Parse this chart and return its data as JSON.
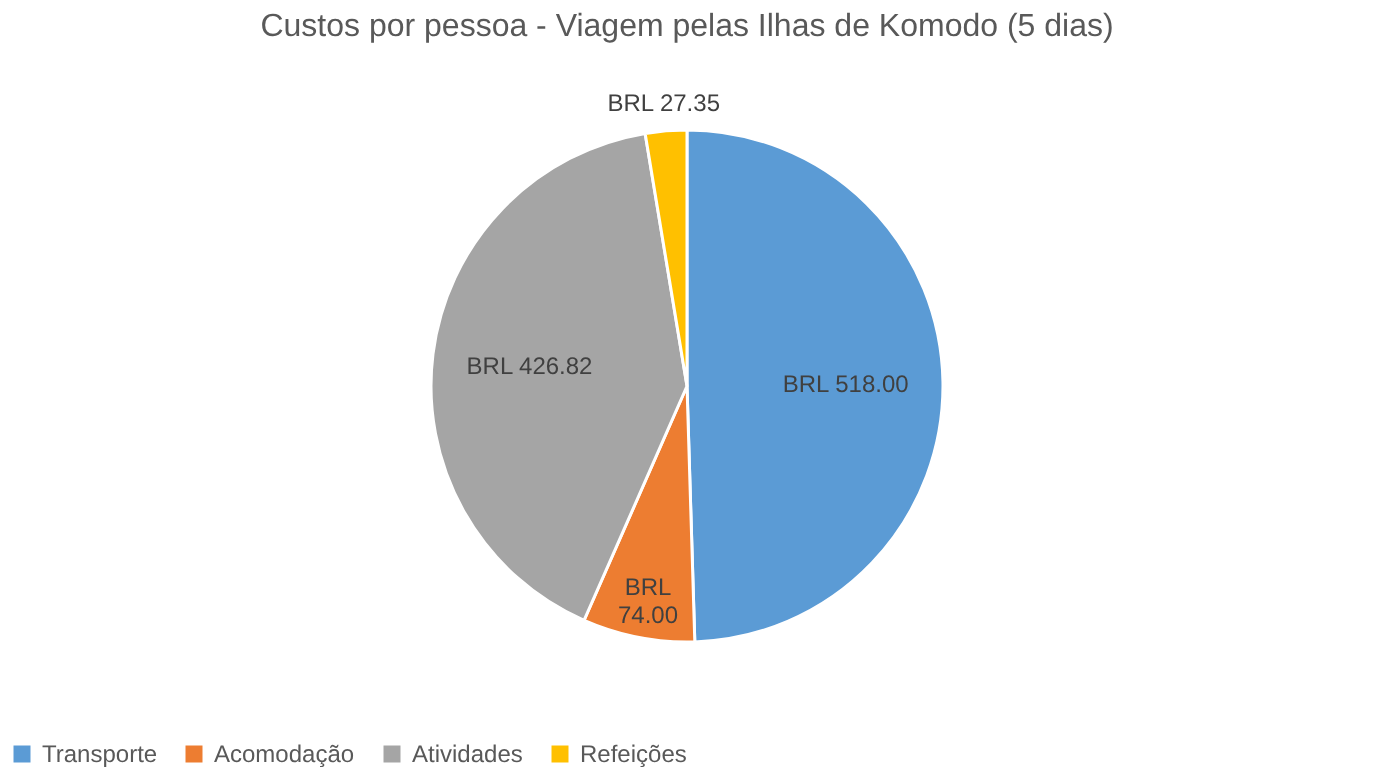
{
  "chart_data": {
    "type": "pie",
    "title": "Custos por pessoa - Viagem pelas Ilhas de Komodo  (5 dias)",
    "categories": [
      "Transporte",
      "Acomodação",
      "Atividades",
      "Refeições"
    ],
    "values": [
      518.0,
      74.0,
      426.82,
      27.35
    ],
    "colors": [
      "#5b9bd5",
      "#ed7d31",
      "#a5a5a5",
      "#ffc000"
    ],
    "value_labels": [
      "BRL 518.00",
      "BRL 74.00",
      "BRL 426.82",
      "BRL 27.35"
    ],
    "legend": "bottom"
  }
}
